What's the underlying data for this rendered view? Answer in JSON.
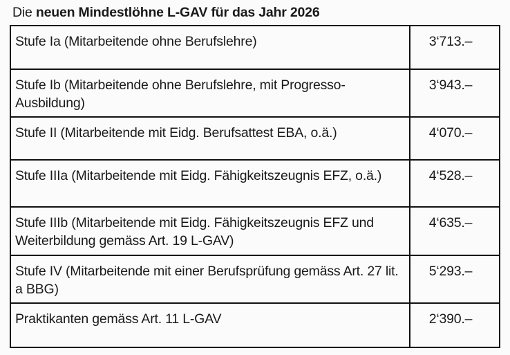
{
  "title": {
    "prefix": "Die ",
    "bold": "neuen Mindestlöhne L-GAV für das Jahr 2026"
  },
  "rows": [
    {
      "label": "Stufe Ia (Mitarbeitende ohne Berufslehre)",
      "amount": "3‘713.–"
    },
    {
      "label": "Stufe Ib (Mitarbeitende ohne Berufslehre, mit Progresso-Ausbildung)",
      "amount": "3‘943.–"
    },
    {
      "label": "Stufe II (Mitarbeitende mit Eidg. Berufsattest EBA, o.ä.)",
      "amount": "4‘070.–"
    },
    {
      "label": "Stufe IIIa (Mitarbeitende mit Eidg. Fähigkeitszeugnis EFZ, o.ä.)",
      "amount": "4‘528.–"
    },
    {
      "label": "Stufe IIIb (Mitarbeitende mit Eidg. Fähigkeitszeugnis EFZ und Weiterbildung gemäss Art. 19 L-GAV)",
      "amount": "4‘635.–"
    },
    {
      "label": "Stufe IV (Mitarbeitende mit einer Berufsprüfung gemäss Art. 27 lit. a BBG)",
      "amount": "5‘293.–"
    },
    {
      "label": "Praktikanten gemäss Art. 11 L-GAV",
      "amount": "2‘390.–"
    }
  ]
}
